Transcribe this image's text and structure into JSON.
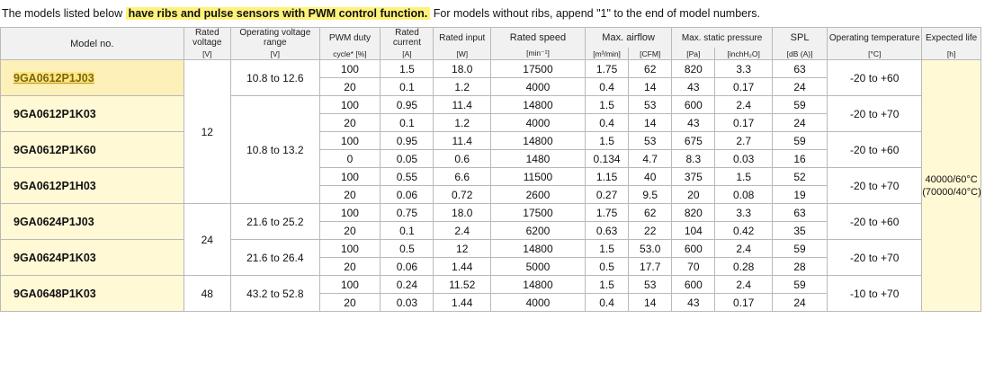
{
  "intro": {
    "prefix": "The models listed below ",
    "highlight": "have ribs and pulse sensors with PWM control function.",
    "suffix": " For models without ribs, append \"1\" to the end of model numbers."
  },
  "headers": {
    "model": "Model no.",
    "rated_voltage": "Rated voltage",
    "rated_voltage_unit": "[V]",
    "op_voltage": "Operating voltage range",
    "op_voltage_unit": "[V]",
    "pwm": "PWM duty",
    "pwm_unit": "cycle* [%]",
    "rated_current": "Rated current",
    "rated_current_unit": "[A]",
    "rated_input": "Rated input",
    "rated_input_unit": "[W]",
    "rated_speed": "Rated speed",
    "rated_speed_unit": "[min⁻¹]",
    "airflow": "Max. airflow",
    "airflow_unit1": "[m³/min]",
    "airflow_unit2": "[CFM]",
    "static": "Max. static pressure",
    "static_unit1": "[Pa]",
    "static_unit2": "[inchH₂O]",
    "spl": "SPL",
    "spl_unit": "[dB (A)]",
    "op_temp": "Operating temperature",
    "op_temp_unit": "[°C]",
    "life": "Expected life",
    "life_unit": "[h]"
  },
  "life_value_1": "40000/60°C",
  "life_value_2": "(70000/40°C)",
  "voltage_groups": [
    "12",
    "24",
    "48"
  ],
  "op_ranges": [
    "10.8 to 12.6",
    "10.8 to 13.2",
    "21.6 to 25.2",
    "21.6 to 26.4",
    "43.2 to 52.8"
  ],
  "models": [
    {
      "name": "9GA0612P1J03",
      "temp": "-20 to +60",
      "rows": [
        [
          "100",
          "1.5",
          "18.0",
          "17500",
          "1.75",
          "62",
          "820",
          "3.3",
          "63"
        ],
        [
          "20",
          "0.1",
          "1.2",
          "4000",
          "0.4",
          "14",
          "43",
          "0.17",
          "24"
        ]
      ]
    },
    {
      "name": "9GA0612P1K03",
      "temp": "-20 to +70",
      "rows": [
        [
          "100",
          "0.95",
          "11.4",
          "14800",
          "1.5",
          "53",
          "600",
          "2.4",
          "59"
        ],
        [
          "20",
          "0.1",
          "1.2",
          "4000",
          "0.4",
          "14",
          "43",
          "0.17",
          "24"
        ]
      ]
    },
    {
      "name": "9GA0612P1K60",
      "temp": "-20 to +60",
      "rows": [
        [
          "100",
          "0.95",
          "11.4",
          "14800",
          "1.5",
          "53",
          "675",
          "2.7",
          "59"
        ],
        [
          "0",
          "0.05",
          "0.6",
          "1480",
          "0.134",
          "4.7",
          "8.3",
          "0.03",
          "16"
        ]
      ]
    },
    {
      "name": "9GA0612P1H03",
      "temp": "-20 to +70",
      "rows": [
        [
          "100",
          "0.55",
          "6.6",
          "11500",
          "1.15",
          "40",
          "375",
          "1.5",
          "52"
        ],
        [
          "20",
          "0.06",
          "0.72",
          "2600",
          "0.27",
          "9.5",
          "20",
          "0.08",
          "19"
        ]
      ]
    },
    {
      "name": "9GA0624P1J03",
      "temp": "-20 to +60",
      "rows": [
        [
          "100",
          "0.75",
          "18.0",
          "17500",
          "1.75",
          "62",
          "820",
          "3.3",
          "63"
        ],
        [
          "20",
          "0.1",
          "2.4",
          "6200",
          "0.63",
          "22",
          "104",
          "0.42",
          "35"
        ]
      ]
    },
    {
      "name": "9GA0624P1K03",
      "temp": "-20 to +70",
      "rows": [
        [
          "100",
          "0.5",
          "12",
          "14800",
          "1.5",
          "53.0",
          "600",
          "2.4",
          "59"
        ],
        [
          "20",
          "0.06",
          "1.44",
          "5000",
          "0.5",
          "17.7",
          "70",
          "0.28",
          "28"
        ]
      ]
    },
    {
      "name": "9GA0648P1K03",
      "temp": "-10 to +70",
      "rows": [
        [
          "100",
          "0.24",
          "11.52",
          "14800",
          "1.5",
          "53",
          "600",
          "2.4",
          "59"
        ],
        [
          "20",
          "0.03",
          "1.44",
          "4000",
          "0.4",
          "14",
          "43",
          "0.17",
          "24"
        ]
      ]
    }
  ]
}
